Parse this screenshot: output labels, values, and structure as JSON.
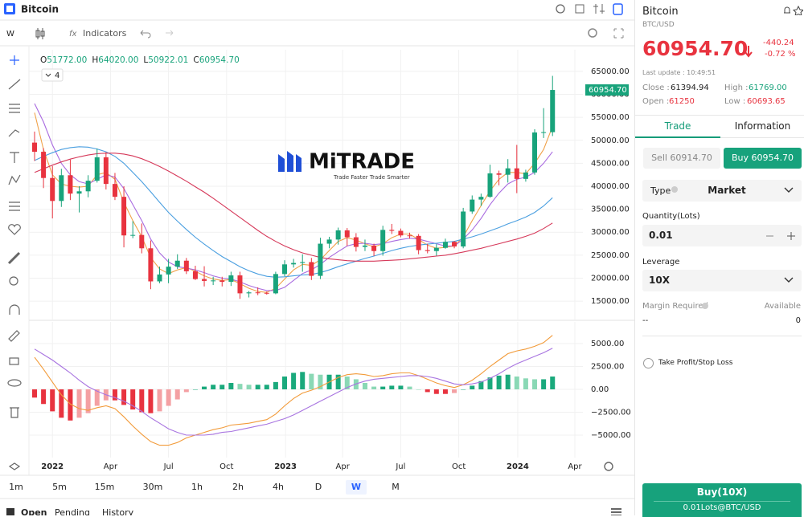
{
  "topbar": {
    "symbol": "Bitcoin"
  },
  "toolbar": {
    "interval": "W",
    "indicators": "Indicators",
    "fx": "fx"
  },
  "overlay": {
    "count": "4"
  },
  "logo": {
    "name": "MiTRADE",
    "tagline": "Trade Faster Trade Smarter"
  },
  "chart_data": [
    {
      "type": "candlestick",
      "open": [
        49500,
        47500,
        41800,
        36800,
        42400,
        38400,
        38900,
        41200,
        46300,
        40500,
        37700,
        29300,
        29400,
        26500,
        19300,
        20800,
        22500,
        23800,
        21500,
        19800,
        19400,
        19500,
        19200,
        20600,
        16700,
        16900,
        16800,
        16700,
        20900,
        23000,
        23300,
        23500,
        20500,
        27500,
        28400,
        30400,
        28900,
        26800,
        27100,
        25900,
        30500,
        30300,
        29300,
        29200,
        26100,
        25900,
        26600,
        27900,
        26900,
        34500,
        37100,
        37700,
        42800,
        42500,
        43900,
        41600,
        43000,
        51700,
        51772
      ],
      "high": [
        51900,
        48300,
        44400,
        43800,
        45800,
        40000,
        42400,
        48200,
        47400,
        42900,
        40000,
        32400,
        31900,
        28200,
        22500,
        24200,
        25200,
        24400,
        22700,
        22600,
        20300,
        20300,
        21400,
        21400,
        17200,
        18000,
        17100,
        21400,
        23900,
        24200,
        25200,
        24400,
        28800,
        29000,
        31000,
        30900,
        29800,
        28400,
        27500,
        31400,
        31800,
        30800,
        29900,
        29600,
        27500,
        27400,
        28600,
        28100,
        35300,
        38000,
        38400,
        44700,
        43400,
        45900,
        49000,
        43600,
        52400,
        57000,
        64020
      ],
      "low": [
        45500,
        39600,
        33000,
        35500,
        37000,
        34300,
        37600,
        40800,
        39300,
        37000,
        26700,
        28700,
        25400,
        17600,
        18900,
        18900,
        22000,
        20900,
        19600,
        18200,
        18500,
        18200,
        18300,
        15500,
        15800,
        16300,
        16400,
        16500,
        20400,
        22300,
        21400,
        19600,
        19800,
        26500,
        27300,
        27000,
        25800,
        25900,
        24800,
        24900,
        29600,
        28900,
        28600,
        25200,
        25400,
        24900,
        26400,
        26500,
        26500,
        34000,
        35700,
        37500,
        40200,
        40800,
        38500,
        41000,
        42500,
        50500,
        50922.01
      ],
      "close": [
        47500,
        41800,
        36800,
        42400,
        38400,
        38900,
        41200,
        46300,
        40500,
        37700,
        29300,
        29400,
        26500,
        19300,
        20800,
        22500,
        23800,
        21500,
        19800,
        19400,
        19500,
        19200,
        20600,
        16700,
        16900,
        16800,
        16700,
        20900,
        23000,
        23300,
        23500,
        20500,
        27500,
        28400,
        30400,
        28900,
        26800,
        27100,
        25900,
        30500,
        30300,
        29300,
        29200,
        26100,
        25900,
        26600,
        27900,
        26900,
        34500,
        37100,
        37700,
        42800,
        42500,
        43900,
        41600,
        43000,
        51700,
        51772,
        60954.7
      ],
      "up_color": "#18a37b",
      "down_color": "#e8333f",
      "series": [
        {
          "color": "#f0a24a",
          "values": [
            56000,
            48000,
            42500,
            40500,
            40000,
            39800,
            40000,
            42500,
            43000,
            41500,
            36500,
            32500,
            29000,
            24500,
            22000,
            21000,
            21800,
            22300,
            21500,
            20500,
            19800,
            19500,
            19700,
            18800,
            17800,
            17100,
            16900,
            17800,
            19800,
            21800,
            23000,
            22800,
            24000,
            26000,
            28000,
            28800,
            28300,
            27500,
            26800,
            27500,
            28800,
            29600,
            29600,
            28400,
            27200,
            26500,
            26700,
            27000,
            29000,
            32500,
            35800,
            39000,
            41500,
            43000,
            43000,
            42700,
            45000,
            48000,
            53000
          ]
        },
        {
          "color": "#a96be0",
          "values": [
            58000,
            54000,
            49000,
            45000,
            42500,
            41000,
            40500,
            41500,
            42500,
            42000,
            39500,
            36000,
            32500,
            28500,
            25500,
            23500,
            22500,
            22200,
            21800,
            21200,
            20500,
            20000,
            19800,
            19200,
            18400,
            17800,
            17300,
            17300,
            18000,
            19500,
            21000,
            21800,
            23000,
            24500,
            25800,
            27000,
            27500,
            27600,
            27300,
            27500,
            28000,
            28400,
            28700,
            28500,
            28000,
            27500,
            27000,
            27000,
            28500,
            30500,
            33000,
            36000,
            38500,
            40500,
            41500,
            42000,
            43000,
            45000,
            47500
          ]
        },
        {
          "color": "#4a9fe0",
          "values": [
            45600,
            46500,
            47300,
            48000,
            48400,
            48600,
            48500,
            48100,
            47500,
            46500,
            45000,
            43000,
            41000,
            38800,
            36500,
            34300,
            32400,
            30600,
            28900,
            27400,
            26000,
            24700,
            23600,
            22500,
            21600,
            20900,
            20400,
            20200,
            20300,
            20500,
            20700,
            20800,
            21200,
            21800,
            22500,
            23100,
            23700,
            24300,
            24800,
            25400,
            26000,
            26500,
            26900,
            27200,
            27400,
            27600,
            27800,
            28000,
            28500,
            29000,
            29600,
            30300,
            31000,
            31800,
            32500,
            33300,
            34300,
            35700,
            37500
          ]
        },
        {
          "color": "#d6395a",
          "values": [
            43000,
            43800,
            44600,
            45300,
            45900,
            46400,
            46800,
            47100,
            47200,
            47200,
            47000,
            46600,
            46000,
            45200,
            44300,
            43300,
            42200,
            41100,
            39900,
            38700,
            37400,
            36000,
            34600,
            33200,
            31800,
            30400,
            29100,
            28000,
            27000,
            26200,
            25500,
            25000,
            24500,
            24200,
            24000,
            23800,
            23700,
            23700,
            23700,
            23800,
            23900,
            24000,
            24200,
            24400,
            24600,
            24800,
            25000,
            25300,
            25700,
            26100,
            26500,
            27000,
            27500,
            28000,
            28500,
            29100,
            29800,
            30800,
            32000
          ]
        }
      ],
      "ylim": [
        11000,
        69700
      ],
      "yticks": [
        {
          "value": 15000,
          "label": "15000.00"
        },
        {
          "value": 20000,
          "label": "20000.00"
        },
        {
          "value": 25000,
          "label": "25000.00"
        },
        {
          "value": 30000,
          "label": "30000.00"
        },
        {
          "value": 35000,
          "label": "35000.00"
        },
        {
          "value": 40000,
          "label": "40000.00"
        },
        {
          "value": 45000,
          "label": "45000.00"
        },
        {
          "value": 50000,
          "label": "50000.00"
        },
        {
          "value": 55000,
          "label": "55000.00"
        },
        {
          "value": 60000,
          "label": "60000.00"
        },
        {
          "value": 65000,
          "label": "65000.00"
        }
      ],
      "grid": true,
      "legend": [
        {
          "key": "O",
          "value": "51772.00"
        },
        {
          "key": "H",
          "value": "64020.00"
        },
        {
          "key": "L",
          "value": "50922.01"
        },
        {
          "key": "C",
          "value": "60954.70"
        }
      ],
      "last_price_label": "60954.70"
    },
    {
      "type": "macd",
      "histogram": [
        -900,
        -1600,
        -2400,
        -3100,
        -3400,
        -3100,
        -2600,
        -1800,
        -1200,
        -1200,
        -1700,
        -2200,
        -2500,
        -2600,
        -2400,
        -1800,
        -1100,
        -300,
        0,
        300,
        500,
        500,
        700,
        600,
        500,
        500,
        500,
        800,
        1400,
        1800,
        1900,
        1700,
        1600,
        1600,
        1600,
        1400,
        1100,
        700,
        300,
        300,
        400,
        400,
        300,
        0,
        -300,
        -500,
        -500,
        -400,
        0,
        400,
        900,
        1300,
        1500,
        1600,
        1400,
        1200,
        1100,
        1100,
        1400
      ],
      "hist_colors": {
        "up_strong": "#1aa97c",
        "up_weak": "#8ad8b5",
        "down_strong": "#e8333f",
        "down_weak": "#f4a0a3"
      },
      "series": [
        {
          "color": "#f29b3a",
          "values": [
            3500,
            2200,
            800,
            -600,
            -1600,
            -2100,
            -2300,
            -2000,
            -1800,
            -2100,
            -3000,
            -4000,
            -4900,
            -5700,
            -6100,
            -6100,
            -5800,
            -5300,
            -5000,
            -4700,
            -4400,
            -4200,
            -3900,
            -3800,
            -3700,
            -3500,
            -3300,
            -2700,
            -1800,
            -1000,
            -400,
            -100,
            300,
            800,
            1300,
            1600,
            1700,
            1600,
            1400,
            1500,
            1700,
            1800,
            1800,
            1500,
            1100,
            700,
            400,
            200,
            500,
            1000,
            1700,
            2500,
            3200,
            3900,
            4200,
            4400,
            4700,
            5100,
            5900
          ]
        },
        {
          "color": "#a874e0",
          "values": [
            4400,
            3800,
            3200,
            2500,
            1800,
            1000,
            300,
            -200,
            -600,
            -900,
            -1300,
            -1800,
            -2400,
            -3100,
            -3700,
            -4300,
            -4700,
            -5000,
            -5000,
            -5000,
            -4900,
            -4700,
            -4600,
            -4400,
            -4200,
            -4000,
            -3800,
            -3500,
            -3200,
            -2800,
            -2300,
            -1800,
            -1300,
            -800,
            -300,
            200,
            600,
            900,
            1100,
            1200,
            1300,
            1400,
            1500,
            1500,
            1400,
            1200,
            900,
            600,
            500,
            600,
            800,
            1200,
            1700,
            2300,
            2800,
            3200,
            3600,
            4000,
            4500
          ]
        }
      ],
      "ylim": [
        -7450,
        7450
      ],
      "yticks": [
        {
          "value": 5000,
          "label": "5000.00"
        },
        {
          "value": 2500,
          "label": "2500.00"
        },
        {
          "value": 0,
          "label": "0.00"
        },
        {
          "value": -2500,
          "label": "−2500.00"
        },
        {
          "value": -5000,
          "label": "−5000.00"
        }
      ],
      "xlim": [
        -0.63,
        61.4
      ],
      "xticks": [
        {
          "value": 2,
          "label": "2022"
        },
        {
          "value": 8.5,
          "label": "Apr"
        },
        {
          "value": 15,
          "label": "Jul"
        },
        {
          "value": 21.5,
          "label": "Oct"
        },
        {
          "value": 28.1,
          "label": "2023"
        },
        {
          "value": 34.5,
          "label": "Apr"
        },
        {
          "value": 41,
          "label": "Jul"
        },
        {
          "value": 47.5,
          "label": "Oct"
        },
        {
          "value": 54.1,
          "label": "2024"
        },
        {
          "value": 60.5,
          "label": "Apr"
        }
      ],
      "grid": true
    }
  ],
  "timeframes": [
    "1m",
    "5m",
    "15m",
    "30m",
    "1h",
    "2h",
    "4h",
    "D",
    "W",
    "M"
  ],
  "selected_timeframe": 8,
  "tabs": [
    "Open",
    "Pending",
    "History"
  ],
  "quote": {
    "name": "Bitcoin",
    "pair": "BTC/USD",
    "price": "60954.70",
    "change": "-440.24",
    "change_pct": "-0.72 %",
    "last_update": "Last update : 10:49:51",
    "close_label": "Close :",
    "close": "61394.94",
    "high_label": "High :",
    "high": "61769.00",
    "open_label": "Open :",
    "open": "61250",
    "low_label": "Low :",
    "low": "60693.65"
  },
  "panel_tabs": [
    "Trade",
    "Information"
  ],
  "sell": "Sell 60914.70",
  "buy": "Buy 60954.70",
  "order": {
    "type_label": "Type",
    "type": "Market",
    "quantity_label": "Quantity(Lots)",
    "quantity": "0.01",
    "leverage_label": "Leverage",
    "leverage": "10X",
    "margin_label": "Margin Required",
    "margin": "--",
    "available_label": "Available",
    "available": "0",
    "tpsl": "Take Profit/Stop Loss",
    "submit": "Buy(10X)",
    "submit_detail": "0.01Lots@BTC/USD"
  }
}
